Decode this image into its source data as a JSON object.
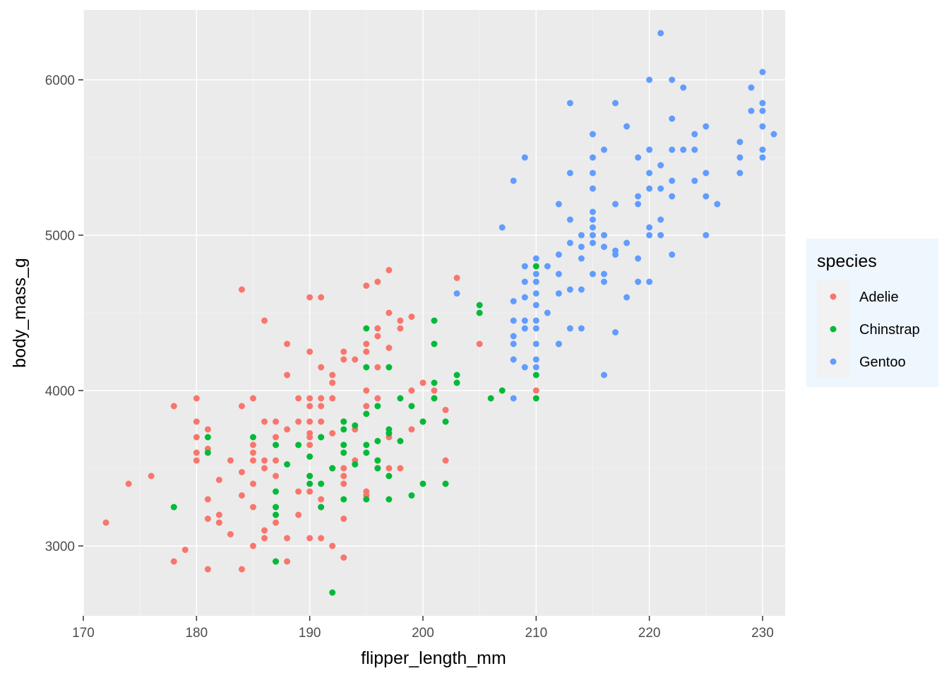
{
  "chart_data": {
    "type": "scatter",
    "title": "",
    "xlabel": "flipper_length_mm",
    "ylabel": "body_mass_g",
    "xlim": [
      170,
      232
    ],
    "ylim": [
      2550,
      6450
    ],
    "x_ticks": [
      170,
      180,
      190,
      200,
      210,
      220,
      230
    ],
    "y_ticks": [
      3000,
      4000,
      5000,
      6000
    ],
    "grid": true,
    "legend": {
      "title": "species",
      "position": "right"
    },
    "series": [
      {
        "name": "Adelie",
        "color": "#F8766D",
        "points": [
          [
            172,
            3150
          ],
          [
            174,
            3400
          ],
          [
            176,
            3450
          ],
          [
            178,
            3900
          ],
          [
            178,
            2900
          ],
          [
            179,
            2975
          ],
          [
            180,
            3950
          ],
          [
            180,
            3800
          ],
          [
            180,
            3700
          ],
          [
            180,
            3600
          ],
          [
            180,
            3550
          ],
          [
            181,
            3750
          ],
          [
            181,
            3625
          ],
          [
            181,
            3300
          ],
          [
            181,
            3175
          ],
          [
            181,
            2850
          ],
          [
            182,
            3425
          ],
          [
            182,
            3200
          ],
          [
            182,
            3150
          ],
          [
            183,
            3550
          ],
          [
            183,
            3075
          ],
          [
            184,
            4650
          ],
          [
            184,
            3900
          ],
          [
            184,
            3475
          ],
          [
            184,
            3325
          ],
          [
            184,
            2850
          ],
          [
            185,
            3950
          ],
          [
            185,
            3650
          ],
          [
            185,
            3600
          ],
          [
            185,
            3550
          ],
          [
            185,
            3400
          ],
          [
            185,
            3250
          ],
          [
            185,
            3000
          ],
          [
            186,
            4450
          ],
          [
            186,
            3800
          ],
          [
            186,
            3550
          ],
          [
            186,
            3500
          ],
          [
            186,
            3100
          ],
          [
            186,
            3050
          ],
          [
            187,
            3800
          ],
          [
            187,
            3700
          ],
          [
            187,
            3550
          ],
          [
            187,
            3450
          ],
          [
            187,
            3150
          ],
          [
            187,
            2900
          ],
          [
            188,
            4300
          ],
          [
            188,
            4100
          ],
          [
            188,
            3750
          ],
          [
            188,
            3050
          ],
          [
            188,
            2900
          ],
          [
            189,
            3950
          ],
          [
            189,
            3800
          ],
          [
            189,
            3350
          ],
          [
            189,
            3200
          ],
          [
            190,
            4600
          ],
          [
            190,
            4250
          ],
          [
            190,
            3950
          ],
          [
            190,
            3900
          ],
          [
            190,
            3800
          ],
          [
            190,
            3725
          ],
          [
            190,
            3700
          ],
          [
            190,
            3650
          ],
          [
            190,
            3450
          ],
          [
            190,
            3350
          ],
          [
            190,
            3050
          ],
          [
            191,
            4600
          ],
          [
            191,
            4150
          ],
          [
            191,
            3950
          ],
          [
            191,
            3900
          ],
          [
            191,
            3800
          ],
          [
            191,
            3700
          ],
          [
            191,
            3300
          ],
          [
            191,
            3250
          ],
          [
            191,
            3050
          ],
          [
            192,
            4100
          ],
          [
            192,
            4050
          ],
          [
            192,
            3950
          ],
          [
            192,
            3725
          ],
          [
            192,
            3500
          ],
          [
            192,
            3000
          ],
          [
            193,
            4250
          ],
          [
            193,
            4200
          ],
          [
            193,
            3800
          ],
          [
            193,
            3500
          ],
          [
            193,
            3450
          ],
          [
            193,
            3400
          ],
          [
            193,
            3175
          ],
          [
            193,
            2925
          ],
          [
            194,
            4200
          ],
          [
            194,
            3750
          ],
          [
            194,
            3550
          ],
          [
            195,
            4675
          ],
          [
            195,
            4300
          ],
          [
            195,
            4250
          ],
          [
            195,
            4000
          ],
          [
            195,
            3900
          ],
          [
            195,
            3350
          ],
          [
            195,
            3325
          ],
          [
            196,
            4700
          ],
          [
            196,
            4400
          ],
          [
            196,
            4350
          ],
          [
            196,
            4150
          ],
          [
            196,
            3950
          ],
          [
            196,
            3550
          ],
          [
            196,
            3500
          ],
          [
            197,
            4775
          ],
          [
            197,
            4500
          ],
          [
            197,
            4275
          ],
          [
            197,
            3700
          ],
          [
            197,
            3500
          ],
          [
            198,
            4450
          ],
          [
            198,
            4400
          ],
          [
            198,
            3500
          ],
          [
            199,
            4475
          ],
          [
            199,
            4000
          ],
          [
            199,
            3750
          ],
          [
            200,
            4050
          ],
          [
            200,
            3800
          ],
          [
            201,
            4000
          ],
          [
            201,
            3950
          ],
          [
            202,
            3875
          ],
          [
            202,
            3550
          ],
          [
            203,
            4725
          ],
          [
            205,
            4300
          ],
          [
            210,
            4000
          ]
        ]
      },
      {
        "name": "Chinstrap",
        "color": "#00BA38",
        "points": [
          [
            178,
            3250
          ],
          [
            181,
            3700
          ],
          [
            181,
            3600
          ],
          [
            185,
            3700
          ],
          [
            187,
            3650
          ],
          [
            187,
            3350
          ],
          [
            187,
            3250
          ],
          [
            187,
            3200
          ],
          [
            187,
            2900
          ],
          [
            188,
            3525
          ],
          [
            189,
            3650
          ],
          [
            190,
            3575
          ],
          [
            190,
            3450
          ],
          [
            190,
            3400
          ],
          [
            191,
            3700
          ],
          [
            191,
            3400
          ],
          [
            191,
            3250
          ],
          [
            192,
            3500
          ],
          [
            192,
            2700
          ],
          [
            193,
            3800
          ],
          [
            193,
            3750
          ],
          [
            193,
            3650
          ],
          [
            193,
            3600
          ],
          [
            193,
            3300
          ],
          [
            194,
            3775
          ],
          [
            194,
            3525
          ],
          [
            195,
            4400
          ],
          [
            195,
            4150
          ],
          [
            195,
            3850
          ],
          [
            195,
            3650
          ],
          [
            195,
            3600
          ],
          [
            195,
            3300
          ],
          [
            196,
            3900
          ],
          [
            196,
            3675
          ],
          [
            196,
            3550
          ],
          [
            196,
            3500
          ],
          [
            197,
            4150
          ],
          [
            197,
            3750
          ],
          [
            197,
            3725
          ],
          [
            197,
            3450
          ],
          [
            197,
            3300
          ],
          [
            198,
            3950
          ],
          [
            198,
            3675
          ],
          [
            199,
            3900
          ],
          [
            199,
            3325
          ],
          [
            200,
            3800
          ],
          [
            200,
            3400
          ],
          [
            201,
            4450
          ],
          [
            201,
            4300
          ],
          [
            201,
            4050
          ],
          [
            201,
            3950
          ],
          [
            202,
            3800
          ],
          [
            202,
            3400
          ],
          [
            203,
            4100
          ],
          [
            203,
            4050
          ],
          [
            205,
            4550
          ],
          [
            205,
            4500
          ],
          [
            206,
            3950
          ],
          [
            207,
            4000
          ],
          [
            210,
            4800
          ],
          [
            210,
            4100
          ],
          [
            210,
            3950
          ],
          [
            212,
            4300
          ]
        ]
      },
      {
        "name": "Gentoo",
        "color": "#619CFF",
        "points": [
          [
            203,
            4625
          ],
          [
            207,
            5050
          ],
          [
            208,
            5350
          ],
          [
            208,
            4575
          ],
          [
            208,
            4450
          ],
          [
            208,
            4350
          ],
          [
            208,
            4300
          ],
          [
            208,
            4200
          ],
          [
            208,
            3950
          ],
          [
            209,
            5500
          ],
          [
            209,
            4800
          ],
          [
            209,
            4700
          ],
          [
            209,
            4600
          ],
          [
            209,
            4450
          ],
          [
            209,
            4400
          ],
          [
            209,
            4150
          ],
          [
            210,
            4850
          ],
          [
            210,
            4750
          ],
          [
            210,
            4700
          ],
          [
            210,
            4625
          ],
          [
            210,
            4550
          ],
          [
            210,
            4450
          ],
          [
            210,
            4400
          ],
          [
            210,
            4300
          ],
          [
            210,
            4200
          ],
          [
            210,
            4150
          ],
          [
            211,
            4800
          ],
          [
            211,
            4500
          ],
          [
            212,
            5200
          ],
          [
            212,
            4875
          ],
          [
            212,
            4750
          ],
          [
            212,
            4625
          ],
          [
            212,
            4300
          ],
          [
            213,
            5850
          ],
          [
            213,
            5400
          ],
          [
            213,
            5100
          ],
          [
            213,
            4950
          ],
          [
            213,
            4650
          ],
          [
            213,
            4400
          ],
          [
            214,
            5000
          ],
          [
            214,
            4925
          ],
          [
            214,
            4850
          ],
          [
            214,
            4650
          ],
          [
            214,
            4400
          ],
          [
            215,
            5650
          ],
          [
            215,
            5500
          ],
          [
            215,
            5400
          ],
          [
            215,
            5300
          ],
          [
            215,
            5150
          ],
          [
            215,
            5100
          ],
          [
            215,
            5050
          ],
          [
            215,
            5000
          ],
          [
            215,
            4950
          ],
          [
            215,
            4750
          ],
          [
            216,
            5550
          ],
          [
            216,
            5000
          ],
          [
            216,
            4925
          ],
          [
            216,
            4750
          ],
          [
            216,
            4700
          ],
          [
            216,
            4100
          ],
          [
            217,
            5850
          ],
          [
            217,
            5200
          ],
          [
            217,
            4900
          ],
          [
            217,
            4875
          ],
          [
            217,
            4375
          ],
          [
            218,
            5700
          ],
          [
            218,
            4950
          ],
          [
            218,
            4600
          ],
          [
            219,
            5500
          ],
          [
            219,
            5250
          ],
          [
            219,
            5200
          ],
          [
            219,
            4850
          ],
          [
            219,
            4700
          ],
          [
            220,
            6000
          ],
          [
            220,
            5550
          ],
          [
            220,
            5400
          ],
          [
            220,
            5300
          ],
          [
            220,
            5050
          ],
          [
            220,
            5000
          ],
          [
            220,
            4700
          ],
          [
            221,
            6300
          ],
          [
            221,
            5450
          ],
          [
            221,
            5300
          ],
          [
            221,
            5100
          ],
          [
            221,
            5000
          ],
          [
            222,
            6000
          ],
          [
            222,
            5750
          ],
          [
            222,
            5550
          ],
          [
            222,
            5350
          ],
          [
            222,
            5250
          ],
          [
            222,
            4875
          ],
          [
            223,
            5950
          ],
          [
            223,
            5550
          ],
          [
            224,
            5650
          ],
          [
            224,
            5550
          ],
          [
            224,
            5350
          ],
          [
            225,
            5700
          ],
          [
            225,
            5400
          ],
          [
            225,
            5250
          ],
          [
            225,
            5000
          ],
          [
            226,
            5200
          ],
          [
            228,
            5600
          ],
          [
            228,
            5500
          ],
          [
            228,
            5400
          ],
          [
            229,
            5950
          ],
          [
            229,
            5800
          ],
          [
            230,
            6050
          ],
          [
            230,
            5850
          ],
          [
            230,
            5800
          ],
          [
            230,
            5700
          ],
          [
            230,
            5550
          ],
          [
            230,
            5500
          ],
          [
            231,
            5650
          ]
        ]
      }
    ]
  }
}
